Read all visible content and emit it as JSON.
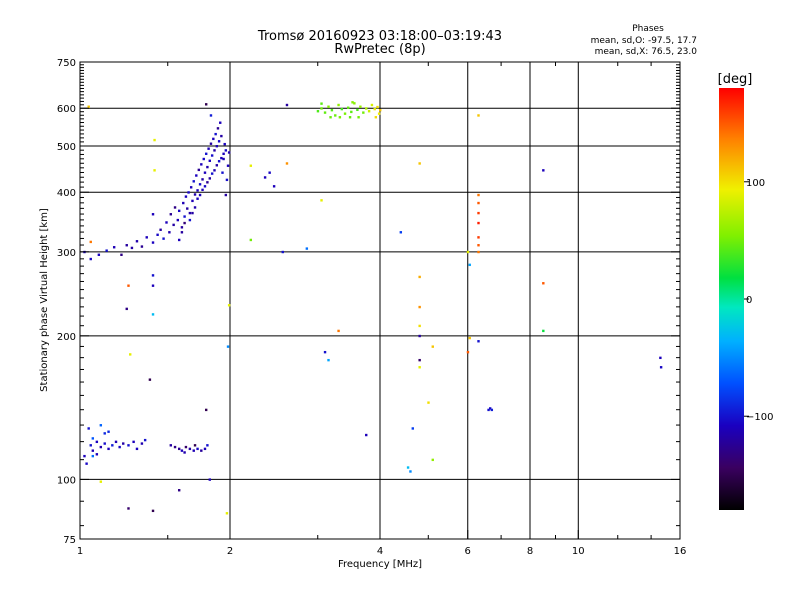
{
  "header": {
    "title": "Tromsø 20160923 03:18:00–03:19:43",
    "subtitle": "RwPretec (8p)",
    "stats_title": "Phases",
    "stats_o": "mean, sd,O: -97.5, 17.7",
    "stats_x": "mean, sd,X:  76.5, 23.0"
  },
  "colorbar": {
    "label": "[deg]",
    "range": [
      -180,
      180
    ],
    "ticks": [
      {
        "value": 100,
        "label": "100"
      },
      {
        "value": 0,
        "label": "0"
      },
      {
        "value": -100,
        "label": "−100"
      }
    ]
  },
  "chart_data": {
    "type": "scatter",
    "xlabel": "Frequency [MHz]",
    "ylabel": "Stationary phase Virtual Height [km]",
    "xscale": "log",
    "yscale": "log",
    "xlim": [
      1,
      16
    ],
    "ylim": [
      75,
      750
    ],
    "x_ticks": [
      {
        "value": 1,
        "label": "1"
      },
      {
        "value": 2,
        "label": "2"
      },
      {
        "value": 4,
        "label": "4"
      },
      {
        "value": 6,
        "label": "6"
      },
      {
        "value": 8,
        "label": "8"
      },
      {
        "value": 10,
        "label": "10"
      },
      {
        "value": 16,
        "label": "16"
      }
    ],
    "x_gridlines": [
      2,
      4,
      6,
      8,
      10
    ],
    "y_ticks": [
      {
        "value": 75,
        "label": "75"
      },
      {
        "value": 100,
        "label": "100"
      },
      {
        "value": 200,
        "label": "200"
      },
      {
        "value": 300,
        "label": "300"
      },
      {
        "value": 400,
        "label": "400"
      },
      {
        "value": 500,
        "label": "500"
      },
      {
        "value": 600,
        "label": "600"
      },
      {
        "value": 750,
        "label": "750"
      }
    ],
    "y_gridlines": [
      100,
      200,
      300,
      400,
      500,
      600
    ],
    "grid": true,
    "points": [
      [
        1.02,
        112,
        -110
      ],
      [
        1.03,
        108,
        -105
      ],
      [
        1.05,
        118,
        -100
      ],
      [
        1.06,
        115,
        -112
      ],
      [
        1.08,
        120,
        -108
      ],
      [
        1.1,
        117,
        -115
      ],
      [
        1.12,
        119,
        -102
      ],
      [
        1.14,
        116,
        -110
      ],
      [
        1.16,
        118,
        -95
      ],
      [
        1.18,
        120,
        -112
      ],
      [
        1.2,
        117,
        -105
      ],
      [
        1.22,
        119,
        -118
      ],
      [
        1.25,
        118,
        -100
      ],
      [
        1.28,
        120,
        -110
      ],
      [
        1.3,
        116,
        -108
      ],
      [
        1.33,
        119,
        -114
      ],
      [
        1.35,
        121,
        -100
      ],
      [
        1.06,
        122,
        -70
      ],
      [
        1.1,
        130,
        -65
      ],
      [
        1.14,
        126,
        -90
      ],
      [
        1.04,
        128,
        -100
      ],
      [
        1.08,
        113,
        -110
      ],
      [
        1.52,
        118,
        -120
      ],
      [
        1.55,
        117,
        -130
      ],
      [
        1.58,
        116,
        -125
      ],
      [
        1.6,
        115,
        -110
      ],
      [
        1.63,
        117,
        -140
      ],
      [
        1.66,
        116,
        -118
      ],
      [
        1.69,
        115,
        -112
      ],
      [
        1.72,
        116,
        -105
      ],
      [
        1.75,
        115,
        -122
      ],
      [
        1.7,
        118,
        -150
      ],
      [
        1.62,
        114,
        -115
      ],
      [
        1.78,
        116,
        -110
      ],
      [
        1.02,
        300,
        -110
      ],
      [
        1.05,
        290,
        -105
      ],
      [
        1.09,
        296,
        -108
      ],
      [
        1.13,
        302,
        -100
      ],
      [
        1.17,
        307,
        -112
      ],
      [
        1.21,
        296,
        -130
      ],
      [
        1.24,
        310,
        -120
      ],
      [
        1.27,
        306,
        -118
      ],
      [
        1.3,
        316,
        -115
      ],
      [
        1.33,
        308,
        -125
      ],
      [
        1.36,
        322,
        -110
      ],
      [
        1.4,
        314,
        -108
      ],
      [
        1.43,
        326,
        -105
      ],
      [
        1.45,
        334,
        -120
      ],
      [
        1.47,
        320,
        -100
      ],
      [
        1.49,
        346,
        -110
      ],
      [
        1.51,
        330,
        -115
      ],
      [
        1.52,
        360,
        -125
      ],
      [
        1.54,
        342,
        -118
      ],
      [
        1.55,
        372,
        -130
      ],
      [
        1.57,
        350,
        -110
      ],
      [
        1.58,
        366,
        -105
      ],
      [
        1.6,
        338,
        -120
      ],
      [
        1.61,
        380,
        -112
      ],
      [
        1.62,
        356,
        -100
      ],
      [
        1.63,
        392,
        -108
      ],
      [
        1.64,
        370,
        -120
      ],
      [
        1.65,
        400,
        -105
      ],
      [
        1.66,
        362,
        -118
      ],
      [
        1.67,
        410,
        -110
      ],
      [
        1.68,
        384,
        -112
      ],
      [
        1.69,
        422,
        -100
      ],
      [
        1.7,
        396,
        -115
      ],
      [
        1.71,
        434,
        -108
      ],
      [
        1.72,
        404,
        -110
      ],
      [
        1.73,
        446,
        -125
      ],
      [
        1.74,
        416,
        -102
      ],
      [
        1.75,
        458,
        -110
      ],
      [
        1.76,
        426,
        -118
      ],
      [
        1.77,
        470,
        -105
      ],
      [
        1.78,
        440,
        -110
      ],
      [
        1.79,
        482,
        -100
      ],
      [
        1.8,
        452,
        -115
      ],
      [
        1.81,
        494,
        -112
      ],
      [
        1.82,
        466,
        -108
      ],
      [
        1.83,
        506,
        -120
      ],
      [
        1.84,
        478,
        -102
      ],
      [
        1.85,
        518,
        -110
      ],
      [
        1.86,
        490,
        -118
      ],
      [
        1.87,
        530,
        -100
      ],
      [
        1.88,
        500,
        -112
      ],
      [
        1.89,
        545,
        -125
      ],
      [
        1.9,
        512,
        -105
      ],
      [
        1.91,
        560,
        -110
      ],
      [
        1.92,
        525,
        -118
      ],
      [
        1.93,
        440,
        -100
      ],
      [
        1.94,
        470,
        -112
      ],
      [
        1.95,
        505,
        -108
      ],
      [
        1.96,
        395,
        -120
      ],
      [
        1.97,
        425,
        -102
      ],
      [
        1.98,
        455,
        -110
      ],
      [
        1.99,
        485,
        -115
      ],
      [
        1.83,
        580,
        -95
      ],
      [
        1.79,
        612,
        -150
      ],
      [
        1.6,
        330,
        -120
      ],
      [
        1.62,
        345,
        -135
      ],
      [
        1.58,
        318,
        -110
      ],
      [
        1.66,
        350,
        -100
      ],
      [
        1.7,
        372,
        -115
      ],
      [
        1.74,
        395,
        -110
      ],
      [
        1.78,
        412,
        -105
      ],
      [
        1.82,
        428,
        -120
      ],
      [
        1.86,
        445,
        -112
      ],
      [
        1.9,
        465,
        -102
      ],
      [
        1.94,
        482,
        -110
      ],
      [
        1.68,
        362,
        -118
      ],
      [
        1.72,
        388,
        -108
      ],
      [
        1.76,
        405,
        -110
      ],
      [
        1.8,
        420,
        -125
      ],
      [
        1.84,
        438,
        -100
      ],
      [
        1.88,
        456,
        -118
      ],
      [
        1.92,
        472,
        -110
      ],
      [
        1.96,
        490,
        -105
      ],
      [
        3.0,
        592,
        40
      ],
      [
        3.05,
        600,
        50
      ],
      [
        3.1,
        588,
        45
      ],
      [
        3.15,
        605,
        55
      ],
      [
        3.2,
        595,
        42
      ],
      [
        3.25,
        580,
        48
      ],
      [
        3.3,
        610,
        60
      ],
      [
        3.35,
        598,
        38
      ],
      [
        3.4,
        585,
        52
      ],
      [
        3.45,
        602,
        46
      ],
      [
        3.5,
        590,
        44
      ],
      [
        3.55,
        615,
        58
      ],
      [
        3.6,
        596,
        40
      ],
      [
        3.65,
        605,
        62
      ],
      [
        3.7,
        588,
        50
      ],
      [
        3.75,
        600,
        70
      ],
      [
        3.8,
        592,
        80
      ],
      [
        3.85,
        610,
        85
      ],
      [
        3.9,
        598,
        90
      ],
      [
        3.95,
        604,
        100
      ],
      [
        4.0,
        595,
        110
      ],
      [
        3.92,
        575,
        100
      ],
      [
        3.98,
        585,
        95
      ],
      [
        3.18,
        575,
        48
      ],
      [
        3.32,
        575,
        52
      ],
      [
        3.48,
        575,
        46
      ],
      [
        3.62,
        575,
        50
      ],
      [
        3.05,
        614,
        44
      ],
      [
        3.52,
        618,
        56
      ],
      [
        6.3,
        395,
        140
      ],
      [
        6.3,
        380,
        150
      ],
      [
        6.3,
        362,
        160
      ],
      [
        6.3,
        345,
        170
      ],
      [
        6.3,
        322,
        160
      ],
      [
        6.3,
        310,
        150
      ],
      [
        6.3,
        300,
        140
      ],
      [
        4.8,
        460,
        110
      ],
      [
        4.8,
        266,
        120
      ],
      [
        4.8,
        230,
        130
      ],
      [
        4.8,
        210,
        100
      ],
      [
        4.8,
        200,
        -120
      ],
      [
        4.8,
        178,
        -140
      ],
      [
        4.8,
        172,
        90
      ],
      [
        4.65,
        128,
        -80
      ],
      [
        4.6,
        104,
        -50
      ],
      [
        4.55,
        106,
        -30
      ],
      [
        5.1,
        110,
        60
      ],
      [
        5.1,
        190,
        110
      ],
      [
        6.0,
        300,
        90
      ],
      [
        6.05,
        282,
        -40
      ],
      [
        6.05,
        198,
        110
      ],
      [
        6.0,
        185,
        150
      ],
      [
        6.3,
        195,
        -100
      ],
      [
        6.3,
        580,
        110
      ],
      [
        6.6,
        140,
        -100
      ],
      [
        6.65,
        141,
        -105
      ],
      [
        6.7,
        140,
        -95
      ],
      [
        8.5,
        445,
        -110
      ],
      [
        8.5,
        258,
        150
      ],
      [
        8.5,
        205,
        20
      ],
      [
        14.6,
        180,
        -110
      ],
      [
        14.65,
        172,
        -105
      ],
      [
        1.04,
        605,
        110
      ],
      [
        1.05,
        315,
        140
      ],
      [
        1.25,
        255,
        150
      ],
      [
        1.24,
        228,
        -130
      ],
      [
        1.26,
        183,
        90
      ],
      [
        1.4,
        360,
        -110
      ],
      [
        1.4,
        255,
        -110
      ],
      [
        1.4,
        268,
        -100
      ],
      [
        1.4,
        222,
        -30
      ],
      [
        1.41,
        445,
        90
      ],
      [
        1.41,
        515,
        90
      ],
      [
        1.38,
        162,
        -150
      ],
      [
        1.4,
        86,
        -150
      ],
      [
        1.58,
        95,
        -130
      ],
      [
        1.25,
        87,
        -140
      ],
      [
        1.79,
        140,
        -150
      ],
      [
        1.8,
        118,
        -100
      ],
      [
        1.82,
        100,
        -110
      ],
      [
        1.97,
        85,
        90
      ],
      [
        1.98,
        190,
        -50
      ],
      [
        1.99,
        232,
        90
      ],
      [
        2.2,
        455,
        90
      ],
      [
        2.2,
        318,
        50
      ],
      [
        2.35,
        430,
        -110
      ],
      [
        2.4,
        440,
        -105
      ],
      [
        2.45,
        412,
        -110
      ],
      [
        2.55,
        300,
        -100
      ],
      [
        2.6,
        460,
        130
      ],
      [
        2.6,
        610,
        -120
      ],
      [
        2.85,
        305,
        -60
      ],
      [
        3.05,
        385,
        90
      ],
      [
        3.1,
        185,
        -100
      ],
      [
        3.15,
        178,
        -40
      ],
      [
        3.3,
        205,
        140
      ],
      [
        3.75,
        124,
        -110
      ],
      [
        4.4,
        330,
        -80
      ],
      [
        5.0,
        145,
        100
      ],
      [
        1.1,
        99,
        90
      ],
      [
        1.06,
        112,
        -60
      ],
      [
        1.12,
        125,
        -90
      ]
    ]
  }
}
